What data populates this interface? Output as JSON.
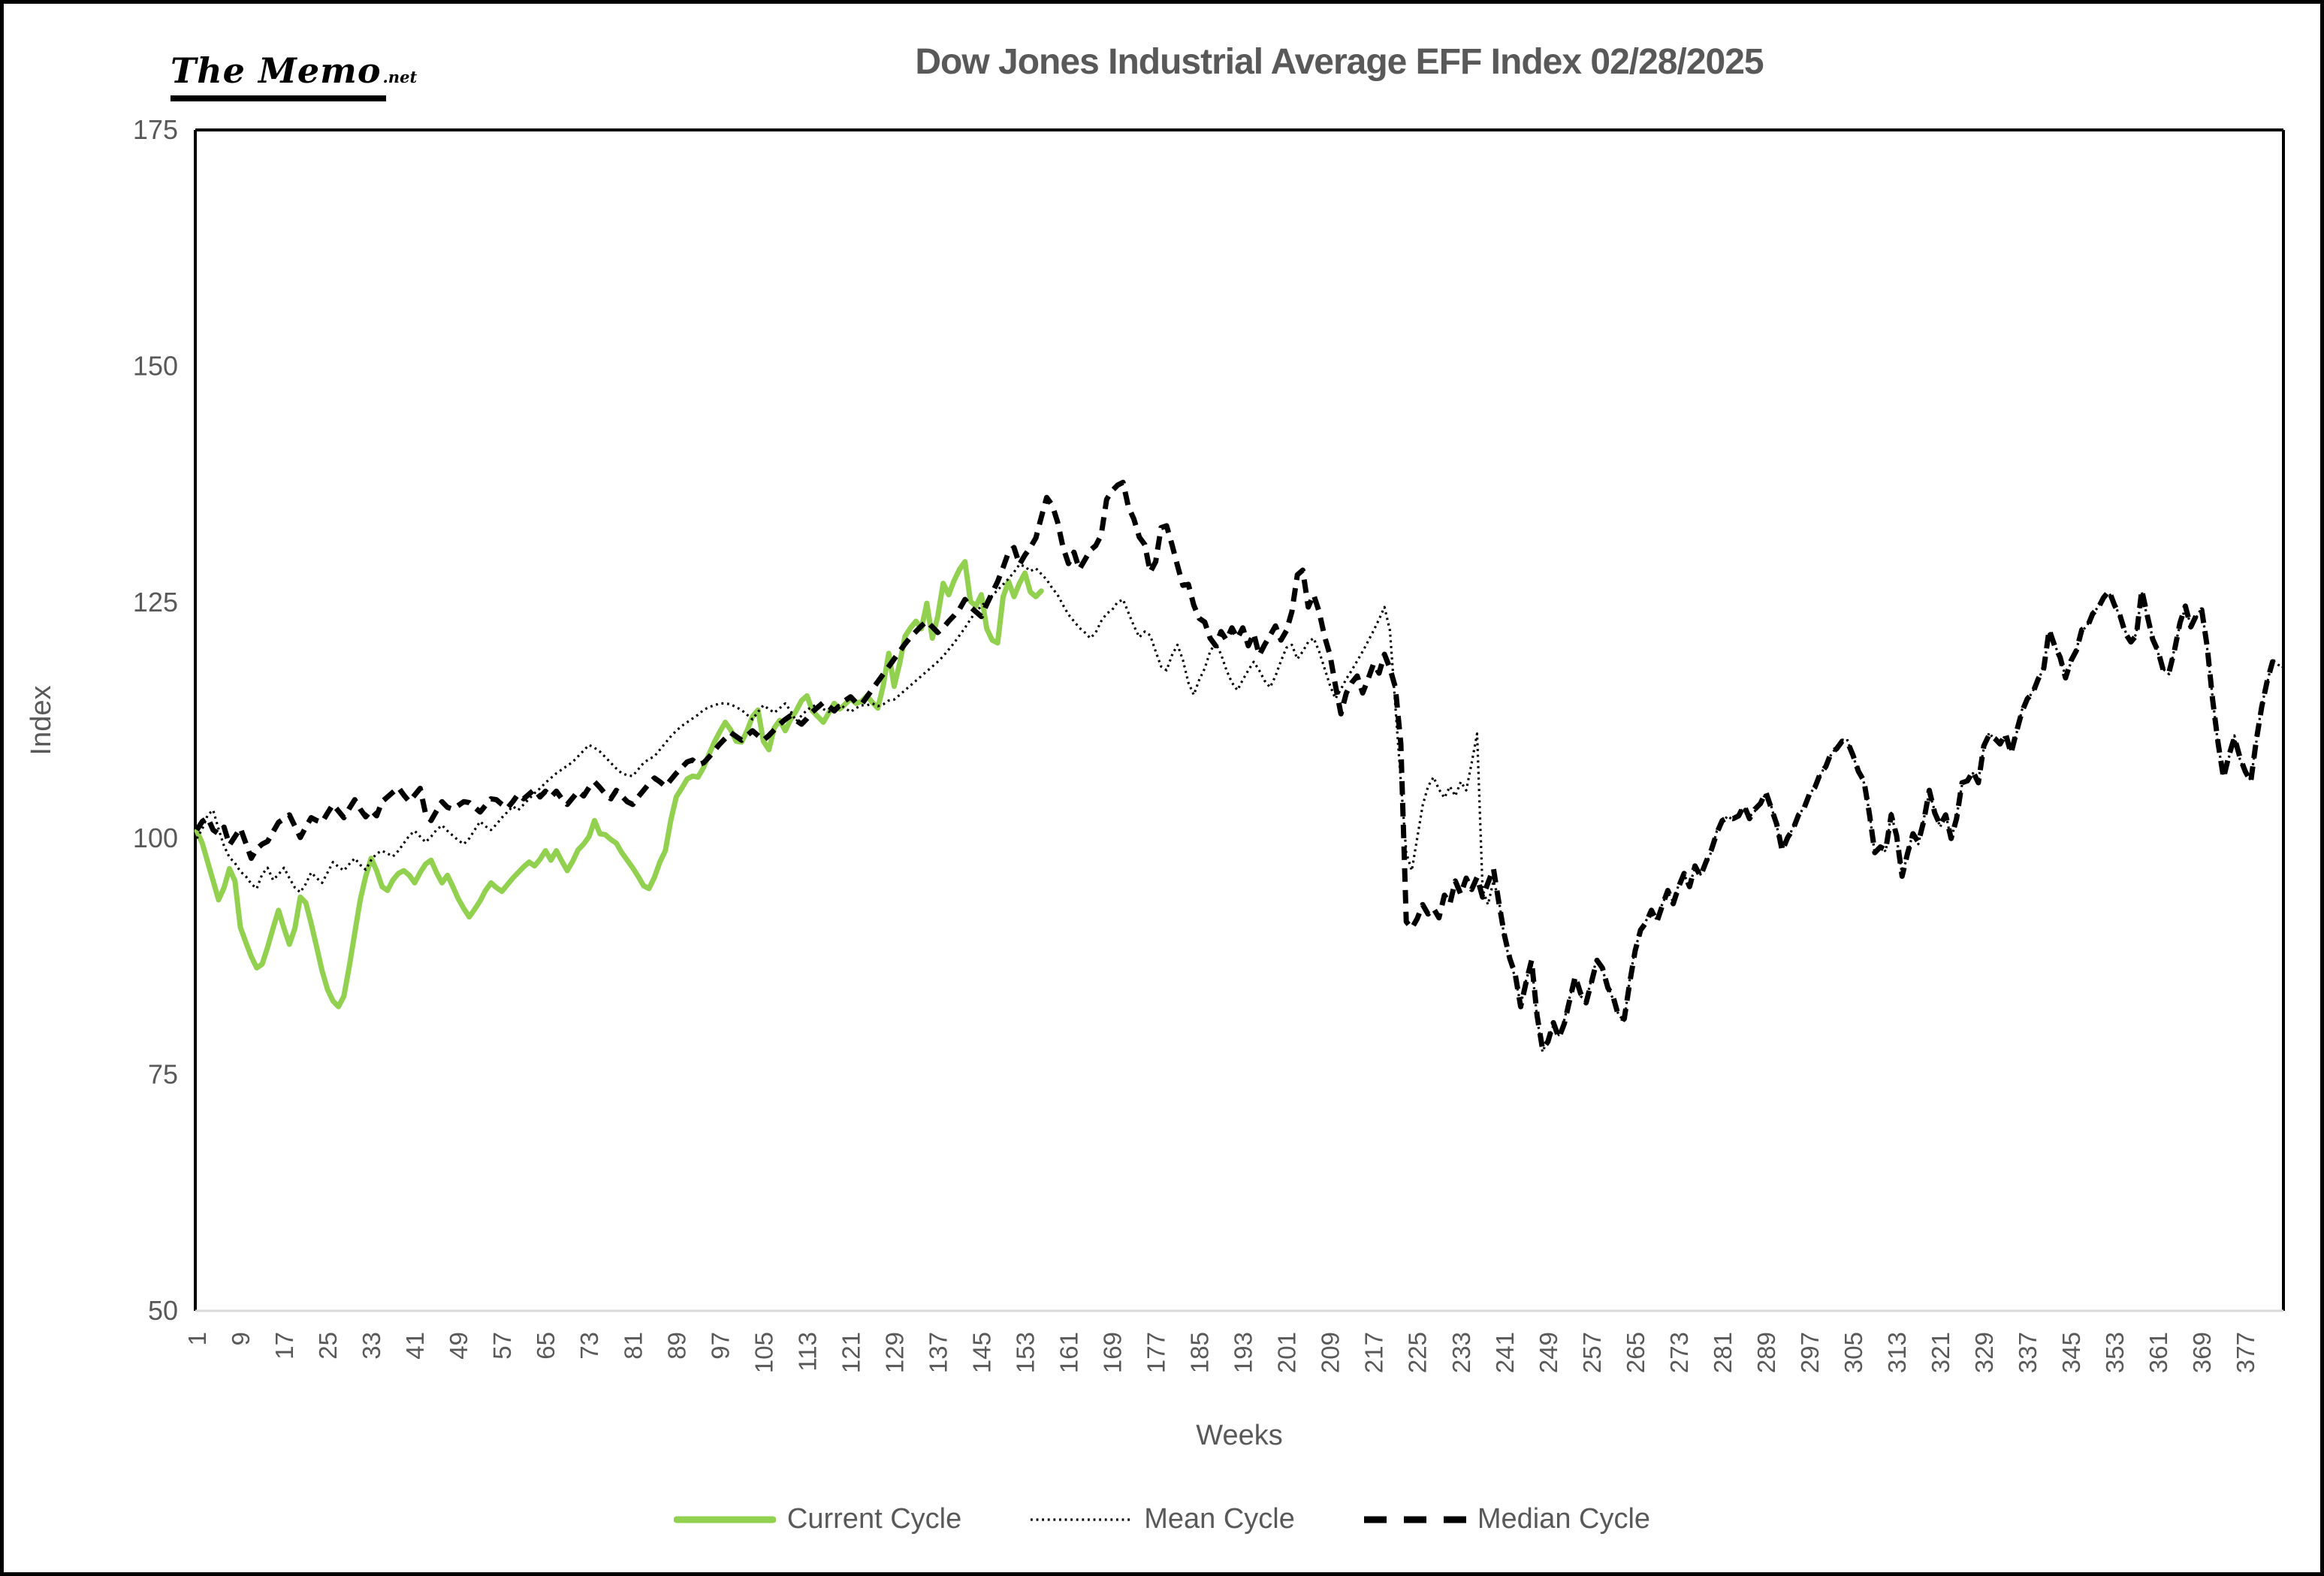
{
  "logo": {
    "text": "The Memo",
    "suffix": ".net"
  },
  "title": {
    "text": "Dow Jones Industrial Average EFF Index 02/28/2025",
    "color": "#595959"
  },
  "chart_data": {
    "type": "line",
    "title": "Dow Jones Industrial Average EFF Index 02/28/2025",
    "xlabel": "Weeks",
    "ylabel": "Index",
    "ylim": [
      50,
      175
    ],
    "xlim": [
      1,
      384
    ],
    "y_ticks": [
      175,
      150,
      125,
      100,
      75,
      50
    ],
    "x_ticks": [
      1,
      9,
      17,
      25,
      33,
      41,
      49,
      57,
      65,
      73,
      81,
      89,
      97,
      105,
      113,
      121,
      129,
      137,
      145,
      153,
      161,
      169,
      177,
      185,
      193,
      201,
      209,
      217,
      225,
      233,
      241,
      249,
      257,
      265,
      273,
      281,
      289,
      297,
      305,
      313,
      321,
      329,
      337,
      345,
      353,
      361,
      369,
      377
    ],
    "grid": false,
    "legend_position": "bottom",
    "axis_text_color": "#595959",
    "plot_border_color": "#000000",
    "plot_bottom_border_color": "#d9d9d9",
    "series": [
      {
        "name": "Current Cycle",
        "color": "#92D050",
        "style": "solid",
        "stroke_width": 7,
        "dash": "",
        "week_start": 1,
        "values": [
          100.8,
          99.5,
          97.5,
          95.5,
          93.5,
          94.8,
          96.8,
          95.5,
          90.6,
          89.0,
          87.5,
          86.3,
          86.7,
          88.5,
          90.5,
          92.4,
          90.5,
          88.8,
          90.5,
          93.8,
          93.2,
          91.0,
          88.5,
          86.0,
          84.0,
          82.8,
          82.2,
          83.3,
          86.5,
          90.0,
          93.5,
          96.0,
          97.9,
          96.6,
          94.9,
          94.5,
          95.6,
          96.3,
          96.6,
          96.1,
          95.3,
          96.4,
          97.3,
          97.7,
          96.4,
          95.3,
          96.1,
          94.9,
          93.6,
          92.6,
          91.7,
          92.5,
          93.4,
          94.5,
          95.3,
          94.8,
          94.4,
          95.1,
          95.8,
          96.4,
          97.0,
          97.5,
          97.1,
          97.8,
          98.7,
          97.7,
          98.7,
          97.6,
          96.6,
          97.6,
          98.8,
          99.4,
          100.2,
          101.9,
          100.5,
          100.4,
          99.9,
          99.5,
          98.5,
          97.7,
          96.9,
          96.0,
          95.0,
          94.7,
          95.9,
          97.5,
          98.7,
          101.9,
          104.4,
          105.3,
          106.3,
          106.6,
          106.5,
          107.5,
          108.9,
          110.2,
          111.3,
          112.3,
          111.5,
          110.3,
          110.2,
          111.4,
          112.9,
          113.6,
          110.3,
          109.4,
          111.7,
          112.5,
          111.4,
          112.6,
          113.5,
          114.6,
          115.1,
          113.5,
          112.9,
          112.3,
          113.3,
          114.3,
          113.7,
          114.2,
          114.8,
          114.3,
          114.5,
          115.1,
          114.4,
          113.8,
          116.2,
          119.6,
          116.1,
          118.5,
          121.4,
          122.3,
          123.0,
          122.2,
          124.9,
          121.2,
          123.5,
          127.0,
          125.8,
          127.3,
          128.5,
          129.3,
          125.1,
          124.6,
          125.8,
          122.2,
          121.0,
          120.7,
          125.6,
          127.2,
          125.6,
          127.0,
          128.1,
          126.1,
          125.6,
          126.2
        ]
      },
      {
        "name": "Mean Cycle",
        "color": "#000000",
        "style": "dotted",
        "stroke_width": 3.2,
        "dash": "2.8 4.8",
        "week_start": 1,
        "values": [
          100.0,
          101.0,
          102.5,
          103.0,
          101.0,
          99.2,
          98.0,
          97.4,
          96.5,
          96.0,
          95.2,
          94.7,
          96.2,
          96.9,
          95.6,
          96.2,
          96.9,
          95.8,
          94.8,
          94.3,
          95.2,
          96.4,
          95.8,
          95.3,
          96.4,
          97.5,
          97.0,
          96.6,
          97.3,
          97.9,
          97.2,
          96.7,
          97.7,
          98.4,
          98.7,
          98.4,
          98.1,
          98.7,
          99.5,
          100.3,
          100.8,
          100.2,
          99.6,
          100.2,
          100.9,
          101.4,
          100.8,
          100.3,
          99.8,
          99.4,
          100.0,
          100.9,
          101.8,
          101.3,
          100.9,
          101.5,
          102.2,
          102.8,
          103.4,
          103.0,
          103.6,
          104.2,
          104.8,
          105.3,
          105.9,
          106.4,
          106.9,
          107.3,
          107.7,
          108.1,
          108.7,
          109.3,
          109.9,
          109.6,
          109.2,
          108.6,
          108.0,
          107.4,
          106.9,
          106.7,
          106.6,
          107.3,
          108.0,
          108.4,
          108.7,
          109.4,
          110.1,
          110.8,
          111.4,
          111.9,
          112.3,
          112.7,
          113.1,
          113.6,
          113.9,
          114.1,
          114.3,
          114.3,
          114.2,
          113.9,
          113.6,
          113.1,
          112.6,
          113.4,
          114.1,
          113.7,
          113.3,
          113.8,
          114.3,
          113.5,
          112.4,
          113.0,
          113.6,
          114.0,
          114.1,
          113.7,
          113.4,
          113.8,
          114.2,
          113.8,
          113.4,
          113.8,
          114.1,
          114.1,
          114.3,
          114.0,
          114.2,
          114.6,
          114.7,
          115.2,
          115.7,
          116.2,
          116.7,
          117.2,
          117.7,
          118.2,
          118.7,
          119.3,
          120.0,
          120.7,
          121.5,
          122.3,
          123.2,
          124.0,
          124.6,
          125.2,
          125.7,
          126.3,
          126.9,
          127.5,
          128.2,
          129.0,
          128.8,
          128.3,
          128.6,
          128.0,
          127.4,
          126.5,
          125.8,
          124.7,
          123.7,
          123.0,
          122.3,
          121.8,
          121.2,
          121.8,
          123.0,
          123.8,
          124.2,
          125.0,
          125.3,
          123.9,
          122.5,
          121.3,
          121.9,
          121.5,
          119.8,
          118.2,
          117.8,
          119.4,
          120.5,
          118.9,
          116.5,
          115.2,
          116.8,
          118.0,
          119.8,
          120.7,
          119.5,
          117.8,
          116.5,
          115.7,
          116.8,
          117.8,
          118.7,
          117.8,
          116.7,
          116.0,
          117.2,
          118.8,
          120.2,
          120.5,
          119.0,
          119.8,
          120.8,
          121.2,
          119.8,
          118.0,
          116.2,
          114.8,
          115.8,
          116.9,
          117.8,
          118.8,
          119.8,
          120.9,
          122.0,
          123.2,
          124.5,
          122.0,
          114.0,
          106.0,
          98.5,
          96.6,
          100.0,
          103.5,
          105.5,
          106.5,
          105.2,
          104.3,
          105.5,
          104.5,
          106.0,
          105.1,
          108.0,
          111.1,
          94.6,
          93.0,
          95.5,
          93.5,
          89.5,
          87.0,
          85.3,
          82.4,
          85.0,
          86.9,
          81.0,
          77.4,
          78.8,
          80.2,
          79.2,
          80.8,
          83.2,
          85.2,
          83.3,
          82.9,
          85.1,
          87.4,
          86.1,
          84.4,
          82.9,
          81.3,
          80.7,
          85.0,
          88.4,
          90.1,
          91.3,
          92.2,
          91.4,
          93.1,
          94.3,
          93.3,
          95.1,
          96.1,
          95.1,
          96.9,
          96.2,
          97.3,
          98.6,
          100.8,
          101.7,
          102.4,
          101.9,
          102.6,
          103.3,
          102.3,
          102.9,
          103.9,
          104.7,
          103.4,
          101.3,
          98.9,
          99.9,
          101.2,
          102.3,
          103.4,
          104.5,
          105.6,
          106.7,
          107.8,
          108.9,
          109.7,
          110.1,
          110.4,
          108.6,
          107.3,
          105.9,
          102.8,
          98.3,
          99.3,
          98.6,
          102.7,
          100.1,
          96.2,
          98.2,
          100.7,
          99.4,
          102.1,
          104.9,
          102.9,
          101.2,
          102.7,
          99.8,
          102.3,
          105.7,
          106.3,
          106.9,
          106.1,
          109.6,
          111.2,
          110.4,
          110.2,
          110.9,
          109.2,
          111.1,
          113.6,
          114.6,
          115.6,
          116.7,
          118.2,
          121.9,
          120.6,
          119.0,
          117.2,
          118.6,
          120.1,
          121.9,
          122.6,
          123.6,
          124.6,
          125.3,
          126.0,
          124.9,
          123.4,
          121.9,
          120.6,
          121.7,
          126.1,
          123.4,
          121.3,
          119.6,
          117.9,
          117.4,
          120.1,
          122.6,
          124.4,
          122.6,
          123.4,
          124.4,
          120.1,
          114.9,
          109.9,
          106.6,
          108.6,
          110.9,
          108.4,
          106.9,
          106.2,
          110.1,
          114.1,
          116.4,
          118.9,
          118.4,
          118.1
        ]
      },
      {
        "name": "Median Cycle",
        "color": "#000000",
        "style": "dashed",
        "stroke_width": 7,
        "dash": "18 11",
        "week_start": 1,
        "values": [
          100.9,
          101.8,
          102.2,
          100.9,
          100.5,
          101.2,
          99.3,
          100.2,
          101.1,
          99.5,
          97.9,
          98.9,
          99.4,
          99.7,
          100.7,
          101.7,
          102.1,
          102.5,
          101.3,
          100.1,
          101.2,
          102.2,
          101.9,
          101.7,
          102.7,
          103.6,
          102.9,
          102.2,
          103.2,
          104.1,
          103.1,
          102.3,
          103.0,
          102.4,
          103.9,
          104.4,
          104.9,
          105.4,
          104.6,
          103.9,
          104.6,
          105.3,
          102.6,
          101.9,
          102.9,
          103.9,
          103.3,
          103.1,
          103.5,
          103.9,
          103.8,
          103.3,
          102.8,
          103.5,
          104.2,
          104.1,
          103.6,
          103.2,
          103.9,
          104.7,
          104.2,
          104.7,
          105.2,
          104.4,
          105.0,
          104.4,
          105.0,
          104.2,
          103.6,
          104.3,
          105.0,
          104.5,
          105.4,
          106.0,
          105.4,
          104.7,
          104.2,
          105.1,
          104.5,
          103.9,
          103.6,
          104.4,
          105.1,
          105.8,
          106.4,
          106.0,
          105.5,
          106.2,
          106.9,
          107.5,
          108.1,
          108.3,
          107.8,
          108.0,
          108.6,
          109.3,
          110.0,
          110.6,
          111.2,
          110.8,
          110.4,
          110.9,
          111.4,
          110.9,
          110.4,
          110.9,
          111.5,
          112.1,
          112.6,
          113.0,
          112.5,
          112.1,
          112.7,
          113.4,
          113.9,
          114.4,
          114.0,
          113.5,
          114.1,
          114.6,
          115.0,
          114.4,
          114.2,
          115.0,
          115.8,
          116.6,
          117.4,
          118.2,
          119.0,
          119.8,
          120.6,
          121.3,
          121.9,
          122.5,
          123.0,
          122.4,
          121.8,
          122.3,
          123.0,
          123.6,
          124.3,
          125.3,
          124.5,
          124.0,
          123.5,
          124.8,
          126.0,
          127.2,
          128.7,
          130.3,
          130.8,
          129.0,
          130.0,
          130.8,
          131.8,
          134.0,
          136.1,
          135.3,
          133.5,
          130.8,
          129.1,
          130.3,
          128.5,
          129.5,
          130.5,
          131.0,
          132.1,
          135.9,
          136.8,
          137.4,
          137.7,
          135.1,
          133.8,
          131.9,
          131.1,
          128.2,
          129.3,
          132.9,
          133.1,
          131.1,
          128.9,
          126.8,
          126.9,
          124.7,
          123.3,
          122.9,
          121.2,
          120.4,
          121.9,
          121.0,
          122.3,
          121.2,
          122.3,
          120.4,
          121.7,
          119.4,
          120.5,
          121.5,
          122.5,
          121.0,
          122.0,
          124.0,
          127.9,
          128.4,
          124.5,
          125.8,
          124.0,
          121.4,
          119.4,
          116.2,
          113.2,
          115.4,
          116.5,
          117.2,
          115.4,
          116.9,
          118.5,
          117.5,
          119.5,
          118.0,
          116.0,
          110.0,
          91.2,
          90.5,
          91.5,
          93.0,
          92.0,
          92.6,
          91.6,
          94.0,
          93.1,
          95.5,
          94.1,
          95.8,
          94.6,
          95.9,
          93.8,
          95.3,
          96.8,
          93.2,
          89.8,
          87.3,
          85.6,
          82.2,
          84.8,
          87.1,
          81.3,
          77.7,
          78.5,
          80.5,
          78.9,
          80.4,
          82.9,
          85.4,
          83.6,
          82.6,
          84.8,
          87.1,
          86.3,
          84.2,
          83.2,
          81.1,
          80.9,
          84.7,
          88.1,
          90.3,
          91.1,
          92.4,
          91.2,
          92.9,
          94.5,
          93.1,
          94.9,
          96.3,
          94.9,
          97.1,
          96.0,
          97.5,
          98.8,
          100.6,
          101.9,
          102.2,
          102.1,
          102.4,
          103.5,
          102.1,
          103.1,
          103.7,
          104.9,
          103.2,
          101.5,
          98.7,
          100.1,
          101.0,
          102.5,
          103.2,
          104.7,
          105.4,
          106.9,
          107.6,
          109.1,
          109.5,
          110.3,
          110.2,
          108.8,
          107.1,
          106.1,
          102.6,
          98.5,
          99.1,
          98.8,
          102.5,
          100.3,
          96.0,
          98.4,
          100.5,
          99.6,
          101.9,
          105.1,
          102.7,
          101.4,
          102.5,
          100.0,
          102.1,
          105.9,
          106.1,
          107.1,
          105.9,
          109.8,
          111.0,
          110.6,
          110.0,
          111.1,
          109.0,
          111.3,
          113.4,
          114.8,
          115.4,
          116.9,
          118.0,
          122.1,
          120.4,
          119.2,
          117.0,
          118.8,
          119.9,
          122.1,
          122.4,
          123.8,
          124.4,
          125.5,
          126.2,
          124.7,
          123.6,
          121.7,
          120.8,
          121.5,
          126.3,
          123.6,
          121.1,
          119.8,
          117.7,
          117.6,
          119.9,
          122.8,
          124.6,
          122.4,
          123.6,
          124.2,
          120.3,
          114.7,
          110.1,
          106.4,
          108.8,
          110.7,
          108.6,
          107.1,
          106.0,
          110.3,
          113.9,
          116.6,
          118.7,
          118.6,
          118.3
        ]
      }
    ]
  }
}
